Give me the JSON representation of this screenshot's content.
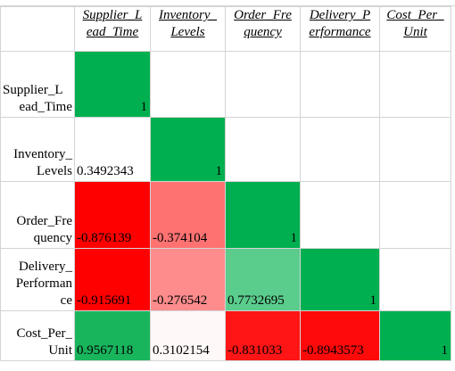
{
  "colors": {
    "gridline": "#d4d4d4",
    "strong_positive": "#00b050",
    "strong_negative": "#ff0000"
  },
  "columns": [
    {
      "lines": [
        "Supplier_L",
        "ead_Time"
      ]
    },
    {
      "lines": [
        "Inventory_",
        "Levels"
      ]
    },
    {
      "lines": [
        "Order_Fre",
        "quency"
      ]
    },
    {
      "lines": [
        "Delivery_P",
        "erformance"
      ]
    },
    {
      "lines": [
        "Cost_Per_",
        "Unit"
      ]
    }
  ],
  "rows": [
    {
      "lines": [
        "Supplier_L",
        "ead_Time"
      ],
      "cells": [
        {
          "value": "1",
          "color": "#00b050"
        }
      ]
    },
    {
      "lines": [
        "Inventory_",
        "Levels"
      ],
      "cells": [
        {
          "value": "0.3492343",
          "color": "#ffffff"
        },
        {
          "value": "1",
          "color": "#00b050"
        }
      ]
    },
    {
      "lines": [
        "Order_Fre",
        "quency"
      ],
      "cells": [
        {
          "value": "-0.876139",
          "color": "#ff0000"
        },
        {
          "value": "-0.374104",
          "color": "#ff7272"
        },
        {
          "value": "1",
          "color": "#00b050"
        }
      ]
    },
    {
      "lines": [
        "Delivery_",
        "Performan",
        "ce"
      ],
      "cells": [
        {
          "value": "-0.915691",
          "color": "#ff0000"
        },
        {
          "value": "-0.276542",
          "color": "#ff8c8c"
        },
        {
          "value": "0.7732695",
          "color": "#5acc8c"
        },
        {
          "value": "1",
          "color": "#00b050"
        }
      ]
    },
    {
      "lines": [
        "Cost_Per_",
        "Unit"
      ],
      "cells": [
        {
          "value": "0.9567118",
          "color": "#19b55d"
        },
        {
          "value": "0.3102154",
          "color": "#fff8f8"
        },
        {
          "value": "-0.831033",
          "color": "#ff1515"
        },
        {
          "value": "-0.8943573",
          "color": "#ff0a0a"
        },
        {
          "value": "1",
          "color": "#00b050"
        }
      ]
    }
  ]
}
